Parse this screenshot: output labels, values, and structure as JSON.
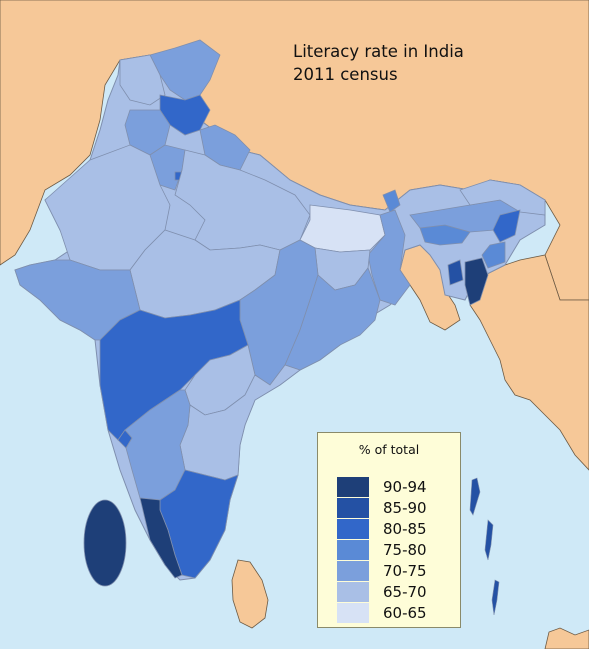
{
  "title": {
    "line1": "Literacy rate in India",
    "line2": "2011 census"
  },
  "legend": {
    "title": "% of total",
    "entries": [
      {
        "label": "90-94",
        "color": "#1e3f78"
      },
      {
        "label": "85-90",
        "color": "#2451a4"
      },
      {
        "label": "80-85",
        "color": "#3267c9"
      },
      {
        "label": "75-80",
        "color": "#5a8ad6"
      },
      {
        "label": "70-75",
        "color": "#7b9fdc"
      },
      {
        "label": "65-70",
        "color": "#a9bfe6"
      },
      {
        "label": "60-65",
        "color": "#d7e2f5"
      }
    ]
  },
  "colors": {
    "sea": "#cfe9f7",
    "neighbour_land": "#f6c898",
    "border": "#7f8fae",
    "neighbour_border": "#6c5a44",
    "legend_bg": "#fefdd8"
  }
}
